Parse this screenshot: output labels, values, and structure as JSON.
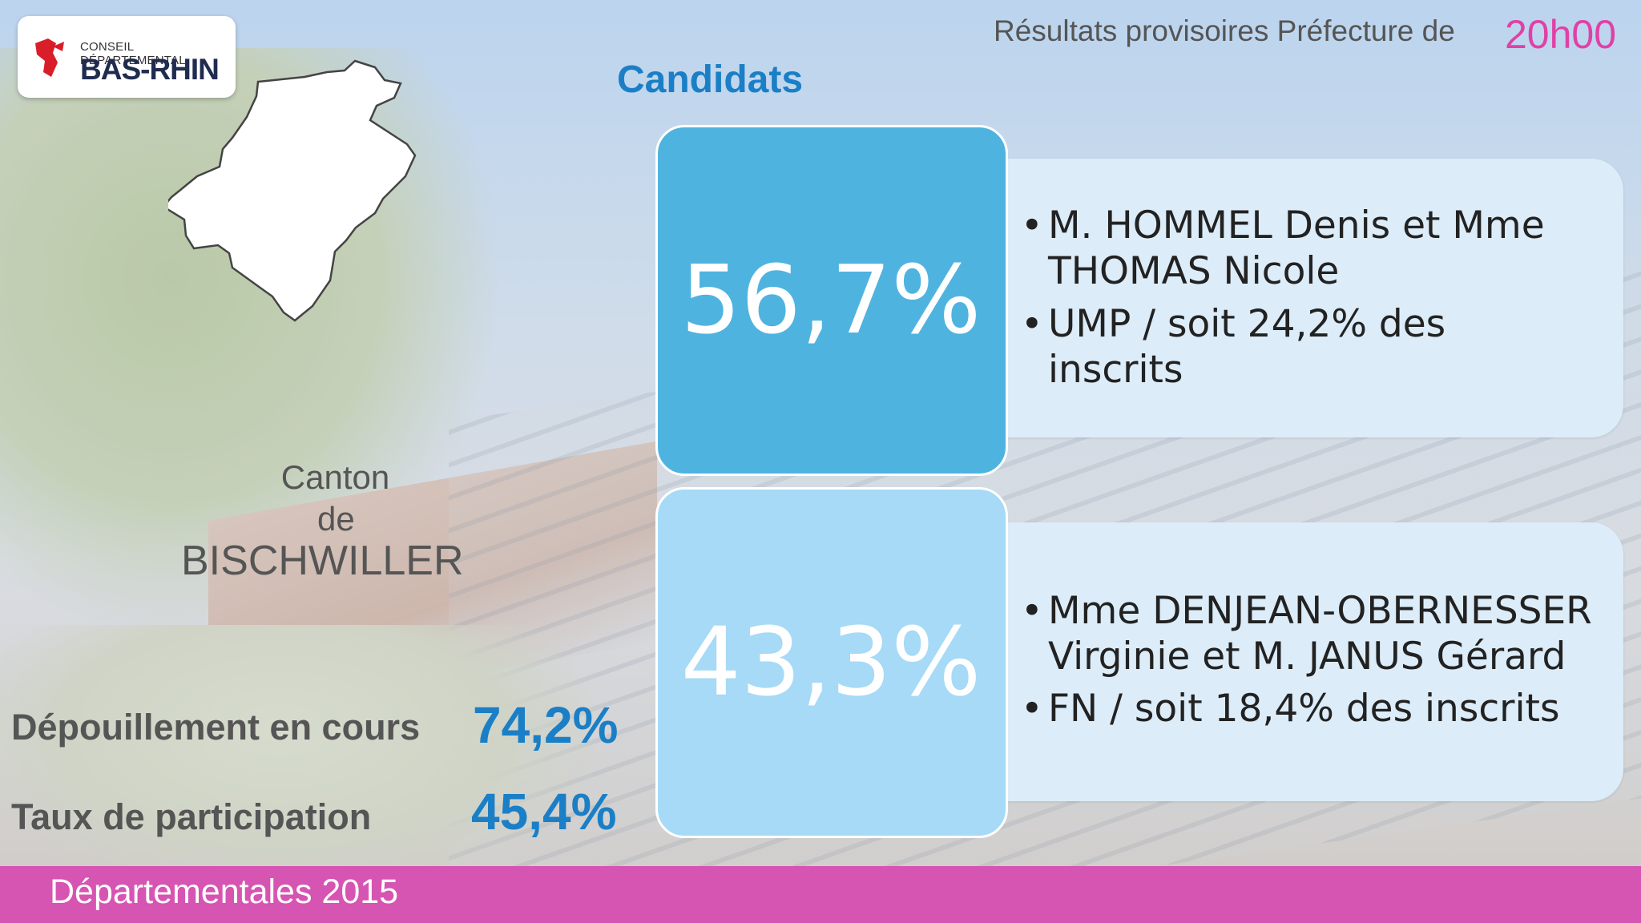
{
  "header": {
    "logo_line1": "CONSEIL DÉPARTEMENTAL",
    "logo_line2": "BAS-RHIN",
    "provisional_label": "Résultats provisoires Préfecture de",
    "time": "20h00"
  },
  "section_title": "Candidats",
  "canton": {
    "label": "Canton",
    "de": "de",
    "name": "BISCHWILLER"
  },
  "stats": {
    "depouillement_label": "Dépouillement en cours",
    "depouillement_value": "74,2%",
    "participation_label": "Taux de participation",
    "participation_value": "45,4%"
  },
  "candidates": [
    {
      "percent": "56,7%",
      "line1": "M. HOMMEL Denis et Mme",
      "line2": "THOMAS Nicole",
      "line3": "UMP / soit 24,2% des",
      "line4": "inscrits",
      "color": "#4fb3e0"
    },
    {
      "percent": "43,3%",
      "line1": "Mme DENJEAN-OBERNESSER",
      "line2": "Virginie et M. JANUS Gérard",
      "line3": "FN / soit 18,4% des inscrits",
      "color": "#a6daf6"
    }
  ],
  "footer": "Départementales 2015",
  "colors": {
    "accent_blue": "#1a7fc6",
    "accent_pink": "#d654b2",
    "time_pink": "#e041a6"
  }
}
